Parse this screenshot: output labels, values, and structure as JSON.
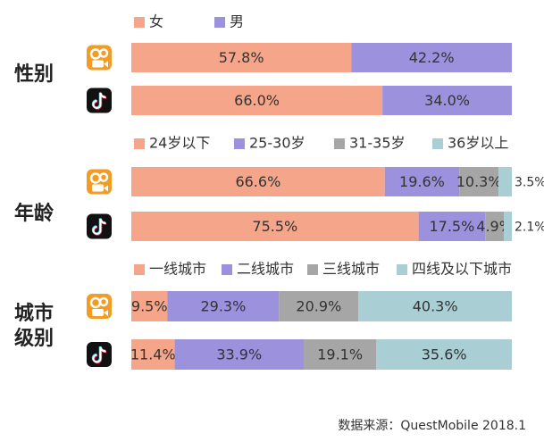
{
  "chart_data": [
    {
      "type": "bar",
      "title": "性别",
      "xlim": [
        0,
        100
      ],
      "series": [
        {
          "name": "女",
          "color": "#f4a58a",
          "values": [
            57.8,
            66.0
          ],
          "value_labels": [
            "57.8%",
            "66.0%"
          ]
        },
        {
          "name": "男",
          "color": "#9b91dc",
          "values": [
            42.2,
            34.0
          ],
          "value_labels": [
            "42.2%",
            "34.0%"
          ]
        }
      ]
    },
    {
      "type": "bar",
      "title": "年龄",
      "xlim": [
        0,
        100
      ],
      "series": [
        {
          "name": "24岁以下",
          "color": "#f4a58a",
          "values": [
            66.6,
            75.5
          ],
          "value_labels": [
            "66.6%",
            "75.5%"
          ]
        },
        {
          "name": "25-30岁",
          "color": "#9b91dc",
          "values": [
            19.6,
            17.5
          ],
          "value_labels": [
            "19.6%",
            "17.5%"
          ]
        },
        {
          "name": "31-35岁",
          "color": "#a6a6a6",
          "values": [
            10.3,
            4.9
          ],
          "value_labels": [
            "10.3%",
            "4.9%"
          ]
        },
        {
          "name": "36岁以上",
          "color": "#a9cfd4",
          "values": [
            3.5,
            2.1
          ],
          "value_labels": [
            "3.5%",
            "2.1%"
          ]
        }
      ]
    },
    {
      "type": "bar",
      "title": "城市级别",
      "xlim": [
        0,
        100
      ],
      "series": [
        {
          "name": "一线城市",
          "color": "#f4a58a",
          "values": [
            9.5,
            11.4
          ],
          "value_labels": [
            "9.5%",
            "11.4%"
          ]
        },
        {
          "name": "二线城市",
          "color": "#9b91dc",
          "values": [
            29.3,
            33.9
          ],
          "value_labels": [
            "29.3%",
            "33.9%"
          ]
        },
        {
          "name": "三线城市",
          "color": "#a6a6a6",
          "values": [
            20.9,
            19.1
          ],
          "value_labels": [
            "20.9%",
            "19.1%"
          ]
        },
        {
          "name": "四线及以下城市",
          "color": "#a9cfd4",
          "values": [
            40.3,
            35.6
          ],
          "value_labels": [
            "40.3%",
            "35.6%"
          ]
        }
      ]
    }
  ],
  "source": "数据来源：QuestMobile 2018.1"
}
